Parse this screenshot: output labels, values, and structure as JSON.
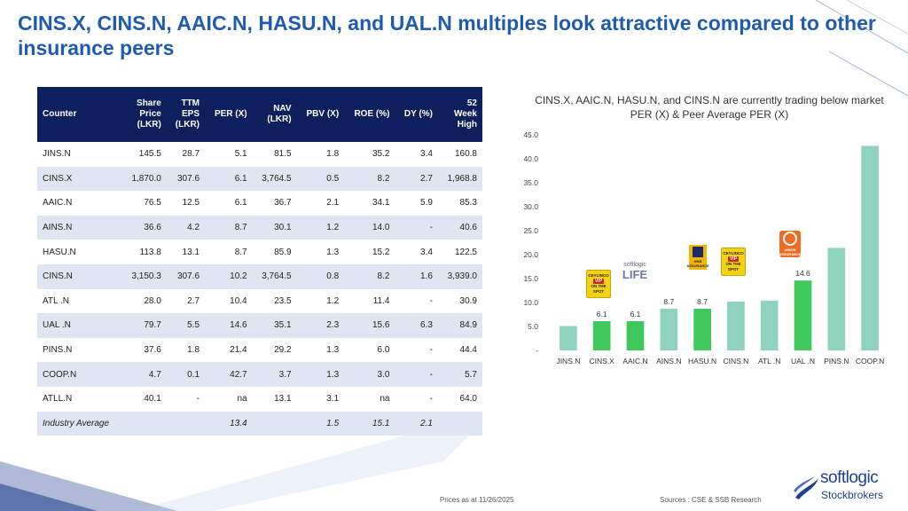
{
  "title": "CINS.X, CINS.N, AAIC.N, HASU.N, and UAL.N multiples look attractive compared to other insurance peers",
  "table": {
    "headers": [
      [
        "Counter"
      ],
      [
        "Share",
        "Price",
        "(LKR)"
      ],
      [
        "TTM",
        "EPS",
        "(LKR)"
      ],
      [
        "PER (X)"
      ],
      [
        "NAV",
        "(LKR)"
      ],
      [
        "PBV (X)"
      ],
      [
        "ROE (%)"
      ],
      [
        "DY (%)"
      ],
      [
        "52",
        "Week",
        "High"
      ]
    ],
    "rows": [
      [
        "JINS.N",
        "145.5",
        "28.7",
        "5.1",
        "81.5",
        "1.8",
        "35.2",
        "3.4",
        "160.8"
      ],
      [
        "CINS.X",
        "1,870.0",
        "307.6",
        "6.1",
        "3,764.5",
        "0.5",
        "8.2",
        "2.7",
        "1,968.8"
      ],
      [
        "AAIC.N",
        "76.5",
        "12.5",
        "6.1",
        "36.7",
        "2.1",
        "34.1",
        "5.9",
        "85.3"
      ],
      [
        "AINS.N",
        "36.6",
        "4.2",
        "8.7",
        "30.1",
        "1.2",
        "14.0",
        "-",
        "40.6"
      ],
      [
        "HASU.N",
        "113.8",
        "13.1",
        "8.7",
        "85.9",
        "1.3",
        "15.2",
        "3.4",
        "122.5"
      ],
      [
        "CINS.N",
        "3,150.3",
        "307.6",
        "10.2",
        "3,764.5",
        "0.8",
        "8.2",
        "1.6",
        "3,939.0"
      ],
      [
        "ATL .N",
        "28.0",
        "2.7",
        "10.4",
        "23.5",
        "1.2",
        "11.4",
        "-",
        "30.9"
      ],
      [
        "UAL .N",
        "79.7",
        "5.5",
        "14.6",
        "35.1",
        "2.3",
        "15.6",
        "6.3",
        "84.9"
      ],
      [
        "PINS.N",
        "37.6",
        "1.8",
        "21.4",
        "29.2",
        "1.3",
        "6.0",
        "-",
        "44.4"
      ],
      [
        "COOP.N",
        "4.7",
        "0.1",
        "42.7",
        "3.7",
        "1.3",
        "3.0",
        "-",
        "5.7"
      ],
      [
        "ATLL.N",
        "40.1",
        "-",
        "na",
        "13.1",
        "3.1",
        "na",
        "-",
        "64.0"
      ],
      [
        "Industry Average",
        "",
        "",
        "13.4",
        "",
        "1.5",
        "15.1",
        "2.1",
        ""
      ]
    ]
  },
  "chart_data": {
    "type": "bar",
    "title": "CINS.X, AAIC.N, HASU.N,  and CINS.N are currently trading below market PER (X) & Peer Average PER (X)",
    "categories": [
      "JINS.N",
      "CINS.X",
      "AAIC.N",
      "AINS.N",
      "HASU.N",
      "CINS.N",
      "ATL .N",
      "UAL .N",
      "PINS.N",
      "COOP.N"
    ],
    "values": [
      5.1,
      6.1,
      6.1,
      8.7,
      8.7,
      10.2,
      10.4,
      14.6,
      21.4,
      42.7
    ],
    "bar_colors": [
      "#8fd3bf",
      "#3fc95c",
      "#3fc95c",
      "#8fd3bf",
      "#3fc95c",
      "#8fd3bf",
      "#8fd3bf",
      "#3fc95c",
      "#8fd3bf",
      "#8fd3bf"
    ],
    "data_labels": [
      "",
      "6.1",
      "6.1",
      "8.7",
      "8.7",
      "",
      "",
      "14.6",
      "",
      ""
    ],
    "yticks": [
      "-",
      "5.0",
      "10.0",
      "15.0",
      "20.0",
      "25.0",
      "30.0",
      "35.0",
      "40.0",
      "45.0"
    ],
    "ylim": [
      0,
      45
    ],
    "xlabel": "",
    "ylabel": ""
  },
  "logos": {
    "ceylinco": {
      "brand": "CEYLINCO",
      "badge": "VIP",
      "tag": "ON THE SPOT"
    },
    "softlogic": {
      "top": "softlogic",
      "bottom": "LIFE"
    },
    "hnb": {
      "text": "HNB ASSURANCE"
    },
    "ual": {
      "text": "UNION ASSURANCE"
    }
  },
  "footer": {
    "date": "Prices as at 11/26/2025",
    "sources": "Sources : CSE & SSB Research"
  },
  "brand": {
    "top": "softlogic",
    "bottom": "Stockbrokers"
  },
  "colors": {
    "title": "#1f5bb0",
    "table_header": "#0d1f5c",
    "row_alt": "#dfe5f1",
    "bar_highlight": "#3fc95c",
    "bar_normal": "#8fd3bf"
  }
}
